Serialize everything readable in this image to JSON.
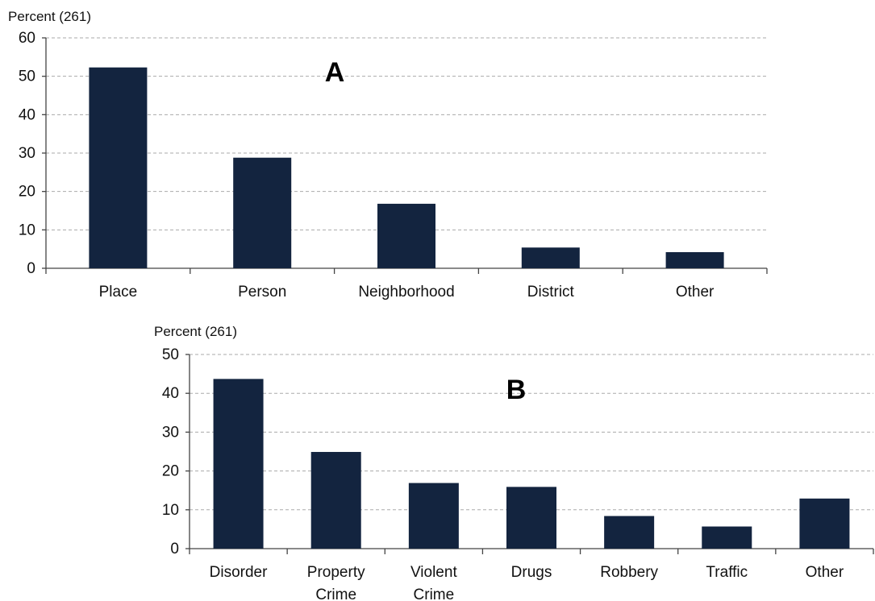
{
  "chart_data": [
    {
      "type": "bar",
      "panel_label": "A",
      "ylabel": "Percent (261)",
      "ylim": [
        0,
        60
      ],
      "yticks": [
        0,
        10,
        20,
        30,
        40,
        50,
        60
      ],
      "grid": true,
      "bar_color": "#13243f",
      "categories": [
        [
          "Place"
        ],
        [
          "Person"
        ],
        [
          "Neighborhood"
        ],
        [
          "District"
        ],
        [
          "Other"
        ]
      ],
      "values": [
        52.3,
        28.8,
        16.8,
        5.4,
        4.2
      ]
    },
    {
      "type": "bar",
      "panel_label": "B",
      "ylabel": "Percent (261)",
      "ylim": [
        0,
        50
      ],
      "yticks": [
        0,
        10,
        20,
        30,
        40,
        50
      ],
      "grid": true,
      "bar_color": "#13243f",
      "categories": [
        [
          "Disorder"
        ],
        [
          "Property",
          "Crime"
        ],
        [
          "Violent",
          "Crime"
        ],
        [
          "Drugs"
        ],
        [
          "Robbery"
        ],
        [
          "Traffic"
        ],
        [
          "Other"
        ]
      ],
      "values": [
        43.7,
        24.9,
        16.9,
        15.9,
        8.4,
        5.7,
        12.9
      ]
    }
  ]
}
